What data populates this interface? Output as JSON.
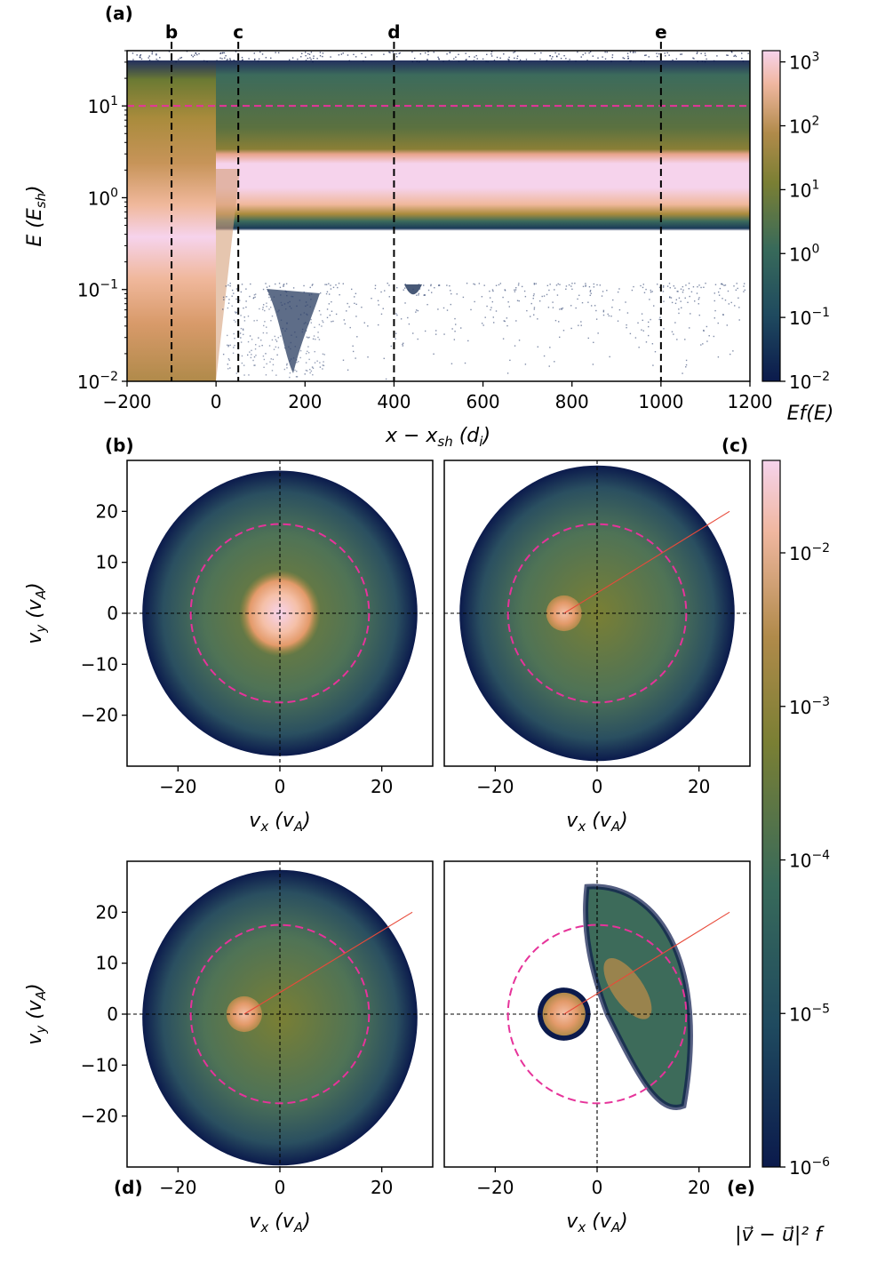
{
  "chart_data": [
    {
      "panel": "(a)",
      "type": "heatmap",
      "xlabel": "x − x_sh (d_i)",
      "ylabel": "E (E_sh)",
      "xlim": [
        -200,
        1200
      ],
      "ylim": [
        0.01,
        40
      ],
      "yscale": "log",
      "xticks": [
        "−200",
        "0",
        "200",
        "400",
        "600",
        "800",
        "1000",
        "1200"
      ],
      "yticks": [
        "10^-2",
        "10^-1",
        "10^0",
        "10^1"
      ],
      "reference_line_E": 10,
      "markers": [
        {
          "label": "b",
          "x": -100
        },
        {
          "label": "c",
          "x": 50
        },
        {
          "label": "d",
          "x": 400
        },
        {
          "label": "e",
          "x": 1000
        }
      ],
      "colorbar": {
        "label": "Ef(E)",
        "scale": "log",
        "range": [
          0.01,
          1500
        ],
        "ticks": [
          "10^-2",
          "10^-1",
          "10^0",
          "10^1",
          "10^2",
          "10^3"
        ]
      }
    },
    {
      "panel": "(b)",
      "type": "heatmap",
      "xlabel": "v_x (v_A)",
      "ylabel": "v_y (v_A)",
      "xlim": [
        -30,
        30
      ],
      "ylim": [
        -30,
        30
      ],
      "xticks": [
        "−20",
        "0",
        "20"
      ],
      "yticks": [
        "−20",
        "−10",
        "0",
        "10",
        "20"
      ],
      "circle_radius": 17.5,
      "core_center": [
        0,
        0
      ]
    },
    {
      "panel": "(c)",
      "type": "heatmap",
      "xlabel": "v_x (v_A)",
      "xlim": [
        -30,
        30
      ],
      "ylim": [
        -30,
        30
      ],
      "xticks": [
        "−20",
        "0",
        "20"
      ],
      "circle_radius": 17.5,
      "core_center": [
        -6.5,
        0
      ],
      "drift_line": [
        [
          -6.5,
          0
        ],
        [
          26,
          20
        ]
      ]
    },
    {
      "panel": "(d)",
      "type": "heatmap",
      "xlabel": "v_x (v_A)",
      "ylabel": "v_y (v_A)",
      "xlim": [
        -30,
        30
      ],
      "ylim": [
        -30,
        30
      ],
      "xticks": [
        "−20",
        "0",
        "20"
      ],
      "yticks": [
        "−20",
        "−10",
        "0",
        "10",
        "20"
      ],
      "circle_radius": 17.5,
      "core_center": [
        -7,
        0
      ],
      "drift_line": [
        [
          -7,
          0
        ],
        [
          26,
          20
        ]
      ]
    },
    {
      "panel": "(e)",
      "type": "heatmap",
      "xlabel": "v_x (v_A)",
      "xlim": [
        -30,
        30
      ],
      "ylim": [
        -30,
        30
      ],
      "xticks": [
        "−20",
        "0",
        "20"
      ],
      "circle_radius": 17.5,
      "core_center": [
        -6.5,
        0
      ],
      "drift_line": [
        [
          -6.5,
          0
        ],
        [
          26,
          20
        ]
      ]
    },
    {
      "panel": "velocity-colorbar",
      "type": "colorbar",
      "label": "|v⃗ − u⃗|² f",
      "scale": "log",
      "range": [
        1e-06,
        0.04
      ],
      "ticks": [
        "10^-2",
        "10^-3",
        "10^-4",
        "10^-5",
        "10^-6"
      ]
    }
  ],
  "labels": {
    "a": "(a)",
    "b": "(b)",
    "c": "(c)",
    "d": "(d)",
    "e": "(e)",
    "marker_b": "b",
    "marker_c": "c",
    "marker_d": "d",
    "marker_e": "e",
    "cbar1": "Ef(E)",
    "cbar2": "|v⃗ − u⃗|² f"
  },
  "colors": {
    "dark": "#0b1a4c",
    "teal": "#2f5e5e",
    "olive": "#6b7a33",
    "gold": "#a98b3c",
    "orange": "#e39a6a",
    "peach": "#f5c0a8",
    "pink": "#f6d3ec",
    "ref": "#e6339a",
    "drift": "#e84a3a"
  }
}
